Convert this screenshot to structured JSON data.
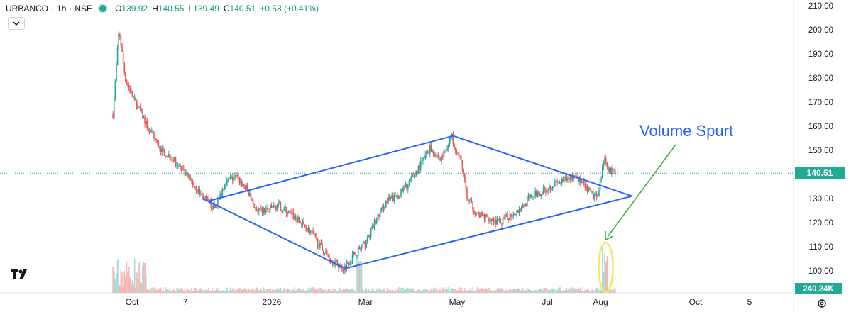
{
  "header": {
    "symbol": "URBANCO",
    "interval": "1h",
    "exchange": "NSE",
    "open_label": "O",
    "open": "139.92",
    "high_label": "H",
    "high": "140.55",
    "low_label": "L",
    "low": "139.49",
    "close_label": "C",
    "close": "140.51",
    "change": "+0.58 (+0.41%)"
  },
  "colors": {
    "up": "#26a69a",
    "down": "#ef5350",
    "drawing": "#2962ff",
    "arrow": "#3cb043",
    "ellipse": "#f5e663",
    "price_line": "#22ab94"
  },
  "chart_data": {
    "type": "candlestick",
    "title": "URBANCO · 1h · NSE",
    "y_axis": {
      "ticks": [
        "210.00",
        "200.00",
        "190.00",
        "180.00",
        "170.00",
        "160.00",
        "150.00",
        "140.00",
        "130.00",
        "120.00",
        "110.00",
        "100.00"
      ],
      "range": [
        94.5,
        212
      ]
    },
    "x_axis": {
      "ticks": [
        "Oct",
        "7",
        "2026",
        "Mar",
        "May",
        "Jul",
        "Aug",
        "Oct",
        "5"
      ]
    },
    "last_price_label": "140.51",
    "volume_label": "240.24K",
    "annotation": "Volume Spurt",
    "price_path": [
      [
        "2025-09-18",
        165
      ],
      [
        "2025-09-22",
        200
      ],
      [
        "2025-09-26",
        180
      ],
      [
        "2025-10-01",
        172
      ],
      [
        "2025-10-06",
        166
      ],
      [
        "2025-10-13",
        157
      ],
      [
        "2025-10-20",
        150
      ],
      [
        "2025-10-27",
        147
      ],
      [
        "2025-11-03",
        141
      ],
      [
        "2025-11-10",
        136
      ],
      [
        "2025-11-17",
        130
      ],
      [
        "2025-11-24",
        126
      ],
      [
        "2025-12-01",
        137
      ],
      [
        "2025-12-08",
        139
      ],
      [
        "2025-12-15",
        134
      ],
      [
        "2025-12-22",
        124
      ],
      [
        "2026-01-05",
        127
      ],
      [
        "2026-01-12",
        124
      ],
      [
        "2026-01-19",
        120
      ],
      [
        "2026-01-26",
        116
      ],
      [
        "2026-02-02",
        109
      ],
      [
        "2026-02-09",
        104
      ],
      [
        "2026-02-16",
        101
      ],
      [
        "2026-02-23",
        107
      ],
      [
        "2026-03-02",
        111
      ],
      [
        "2026-03-09",
        121
      ],
      [
        "2026-03-16",
        129
      ],
      [
        "2026-03-23",
        131
      ],
      [
        "2026-03-30",
        136
      ],
      [
        "2026-04-06",
        143
      ],
      [
        "2026-04-13",
        151
      ],
      [
        "2026-04-20",
        146
      ],
      [
        "2026-04-27",
        156
      ],
      [
        "2026-05-04",
        143
      ],
      [
        "2026-05-07",
        130
      ],
      [
        "2026-05-14",
        123
      ],
      [
        "2026-05-21",
        122
      ],
      [
        "2026-05-28",
        120
      ],
      [
        "2026-06-04",
        123
      ],
      [
        "2026-06-11",
        126
      ],
      [
        "2026-06-18",
        131
      ],
      [
        "2026-06-25",
        133
      ],
      [
        "2026-07-02",
        136
      ],
      [
        "2026-07-09",
        137
      ],
      [
        "2026-07-16",
        140
      ],
      [
        "2026-07-23",
        134
      ],
      [
        "2026-07-30",
        130
      ],
      [
        "2026-08-04",
        146
      ],
      [
        "2026-08-07",
        142
      ],
      [
        "2026-08-11",
        140.51
      ]
    ],
    "diamond_pattern": [
      {
        "from": [
          "2025-11-20",
          129
        ],
        "to": [
          "2026-04-28",
          156
        ]
      },
      {
        "from": [
          "2026-04-28",
          156
        ],
        "to": [
          "2026-08-22",
          131
        ]
      },
      {
        "from": [
          "2025-11-16",
          130
        ],
        "to": [
          "2026-02-17",
          101
        ]
      },
      {
        "from": [
          "2026-02-17",
          101
        ],
        "to": [
          "2026-08-22",
          131
        ]
      }
    ],
    "volume_spurt_date": "2026-08-04",
    "gridlines": false,
    "last_price_line": true
  }
}
